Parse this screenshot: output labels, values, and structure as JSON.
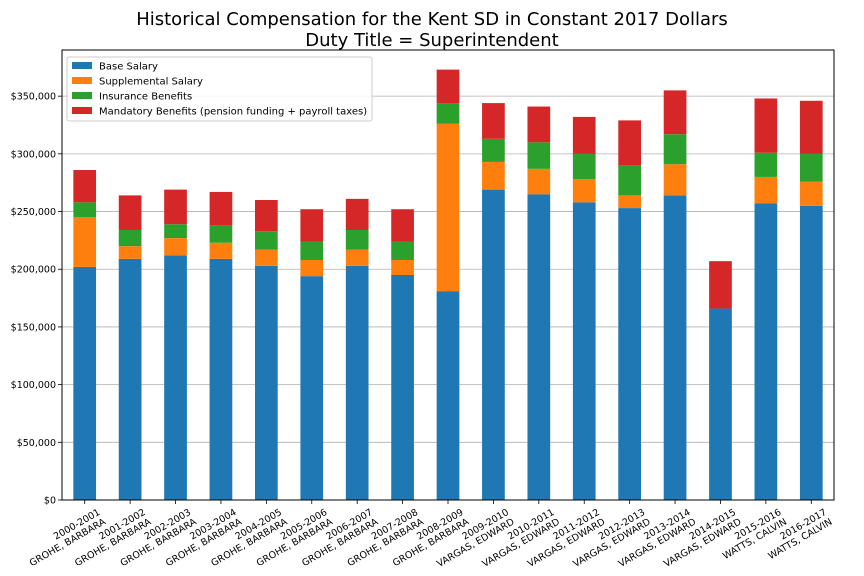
{
  "chart_data": {
    "type": "bar",
    "stacked": true,
    "title": "Historical Compensation for the Kent SD in Constant 2017 Dollars",
    "subtitle": "Duty Title = Superintendent",
    "xlabel": "",
    "ylabel": "",
    "ylim": [
      0,
      390000
    ],
    "y_ticks": [
      0,
      50000,
      100000,
      150000,
      200000,
      250000,
      300000,
      350000
    ],
    "y_tick_labels": [
      "$0",
      "$50,000",
      "$100,000",
      "$150,000",
      "$200,000",
      "$250,000",
      "$300,000",
      "$350,000"
    ],
    "grid": "horizontal",
    "legend_position": "top-left",
    "categories": [
      [
        "2000-2001",
        "GROHE, BARBARA"
      ],
      [
        "2001-2002",
        "GROHE, BARBARA"
      ],
      [
        "2002-2003",
        "GROHE, BARBARA"
      ],
      [
        "2003-2004",
        "GROHE, BARBARA"
      ],
      [
        "2004-2005",
        "GROHE, BARBARA"
      ],
      [
        "2005-2006",
        "GROHE, BARBARA"
      ],
      [
        "2006-2007",
        "GROHE, BARBARA"
      ],
      [
        "2007-2008",
        "GROHE, BARBARA"
      ],
      [
        "2008-2009",
        "GROHE, BARBARA"
      ],
      [
        "2009-2010",
        "VARGAS, EDWARD"
      ],
      [
        "2010-2011",
        "VARGAS, EDWARD"
      ],
      [
        "2011-2012",
        "VARGAS, EDWARD"
      ],
      [
        "2012-2013",
        "VARGAS, EDWARD"
      ],
      [
        "2013-2014",
        "VARGAS, EDWARD"
      ],
      [
        "2014-2015",
        "VARGAS, EDWARD"
      ],
      [
        "2015-2016",
        "WATTS, CALVIN"
      ],
      [
        "2016-2017",
        "WATTS, CALVIN"
      ]
    ],
    "series": [
      {
        "name": "Base Salary",
        "color": "#1f77b4",
        "values": [
          202000,
          209000,
          212000,
          209000,
          203000,
          194000,
          203000,
          195000,
          181000,
          269000,
          265000,
          258000,
          253000,
          264000,
          166000,
          257000,
          255000
        ]
      },
      {
        "name": "Supplemental Salary",
        "color": "#ff7f0e",
        "values": [
          43000,
          11000,
          15000,
          14000,
          14000,
          14000,
          14000,
          13000,
          145000,
          24000,
          22000,
          20000,
          11000,
          27000,
          0,
          23000,
          21000
        ]
      },
      {
        "name": "Insurance Benefits",
        "color": "#2ca02c",
        "values": [
          13000,
          14000,
          12000,
          15000,
          16000,
          16000,
          17000,
          16000,
          18000,
          20000,
          23000,
          22000,
          26000,
          26000,
          0,
          21000,
          24000
        ]
      },
      {
        "name": "Mandatory Benefits (pension funding + payroll taxes)",
        "color": "#d62728",
        "values": [
          28000,
          30000,
          30000,
          29000,
          27000,
          28000,
          27000,
          28000,
          29000,
          31000,
          31000,
          32000,
          39000,
          38000,
          41000,
          47000,
          46000
        ]
      }
    ]
  }
}
